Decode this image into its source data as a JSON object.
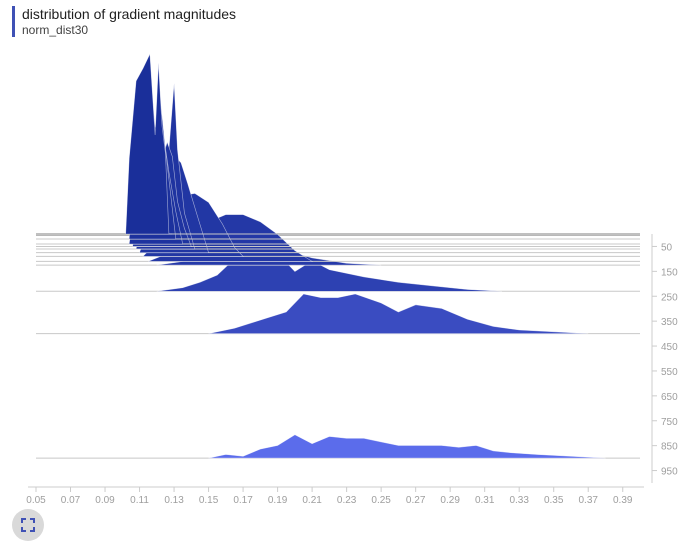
{
  "header": {
    "title": "distribution of gradient magnitudes",
    "subtitle": "norm_dist30"
  },
  "controls": {
    "expand_icon": "fullscreen-icon"
  },
  "colors": {
    "accent": "#3F51B5",
    "series_dark": "#1a2f9a",
    "series_light": "#6272f3",
    "axis": "#cccccc",
    "tick_text": "#9e9e9e"
  },
  "chart_data": {
    "type": "area",
    "title": "distribution of gradient magnitudes",
    "subtitle": "norm_dist30",
    "xlim": [
      0.05,
      0.4
    ],
    "x_ticks": [
      "0.05",
      "0.07",
      "0.09",
      "0.11",
      "0.13",
      "0.15",
      "0.17",
      "0.19",
      "0.21",
      "0.23",
      "0.25",
      "0.27",
      "0.29",
      "0.31",
      "0.33",
      "0.35",
      "0.37",
      "0.39"
    ],
    "ylim": [
      0,
      1000
    ],
    "y_ticks": [
      "50",
      "150",
      "250",
      "350",
      "450",
      "550",
      "650",
      "750",
      "850",
      "950"
    ],
    "ylabel": "",
    "xlabel": "",
    "series": [
      {
        "step": 0,
        "points": [
          [
            0.102,
            0
          ],
          [
            0.104,
            0.42
          ],
          [
            0.108,
            0.85
          ],
          [
            0.112,
            0.92
          ],
          [
            0.116,
            1.0
          ],
          [
            0.119,
            0.55
          ],
          [
            0.121,
            0.95
          ],
          [
            0.123,
            0.6
          ],
          [
            0.125,
            0.45
          ],
          [
            0.127,
            0
          ],
          [
            0.129,
            0
          ]
        ]
      },
      {
        "step": 20,
        "points": [
          [
            0.104,
            0
          ],
          [
            0.108,
            0.55
          ],
          [
            0.112,
            0.8
          ],
          [
            0.116,
            0.95
          ],
          [
            0.119,
            0.62
          ],
          [
            0.122,
            0.78
          ],
          [
            0.125,
            0.5
          ],
          [
            0.128,
            0.25
          ],
          [
            0.131,
            0
          ]
        ]
      },
      {
        "step": 40,
        "points": [
          [
            0.104,
            0
          ],
          [
            0.11,
            0.45
          ],
          [
            0.115,
            0.65
          ],
          [
            0.118,
            0.72
          ],
          [
            0.121,
            0.55
          ],
          [
            0.124,
            0.6
          ],
          [
            0.127,
            0.4
          ],
          [
            0.131,
            0.18
          ],
          [
            0.135,
            0
          ]
        ]
      },
      {
        "step": 50,
        "points": [
          [
            0.106,
            0
          ],
          [
            0.112,
            0.4
          ],
          [
            0.118,
            0.55
          ],
          [
            0.122,
            0.45
          ],
          [
            0.126,
            0.58
          ],
          [
            0.129,
            0.5
          ],
          [
            0.132,
            0.25
          ],
          [
            0.136,
            0.1
          ],
          [
            0.14,
            0
          ]
        ]
      },
      {
        "step": 60,
        "points": [
          [
            0.108,
            0
          ],
          [
            0.115,
            0.3
          ],
          [
            0.122,
            0.6
          ],
          [
            0.127,
            0.55
          ],
          [
            0.13,
            0.92
          ],
          [
            0.132,
            0.55
          ],
          [
            0.136,
            0.2
          ],
          [
            0.142,
            0
          ]
        ]
      },
      {
        "step": 75,
        "points": [
          [
            0.11,
            0
          ],
          [
            0.118,
            0.22
          ],
          [
            0.126,
            0.5
          ],
          [
            0.13,
            0.54
          ],
          [
            0.134,
            0.5
          ],
          [
            0.138,
            0.38
          ],
          [
            0.143,
            0.22
          ],
          [
            0.15,
            0
          ]
        ]
      },
      {
        "step": 90,
        "points": [
          [
            0.112,
            0
          ],
          [
            0.122,
            0.1
          ],
          [
            0.13,
            0.25
          ],
          [
            0.136,
            0.34
          ],
          [
            0.142,
            0.35
          ],
          [
            0.15,
            0.3
          ],
          [
            0.158,
            0.18
          ],
          [
            0.165,
            0.05
          ],
          [
            0.17,
            0
          ]
        ]
      },
      {
        "step": 110,
        "points": [
          [
            0.115,
            0
          ],
          [
            0.128,
            0.05
          ],
          [
            0.14,
            0.14
          ],
          [
            0.15,
            0.22
          ],
          [
            0.16,
            0.26
          ],
          [
            0.17,
            0.26
          ],
          [
            0.18,
            0.22
          ],
          [
            0.19,
            0.15
          ],
          [
            0.2,
            0.06
          ],
          [
            0.21,
            0
          ]
        ]
      },
      {
        "step": 125,
        "points": [
          [
            0.12,
            0
          ],
          [
            0.135,
            0.02
          ],
          [
            0.15,
            0.07
          ],
          [
            0.165,
            0.12
          ],
          [
            0.175,
            0.14
          ],
          [
            0.185,
            0.12
          ],
          [
            0.195,
            0.08
          ],
          [
            0.21,
            0.04
          ],
          [
            0.23,
            0.01
          ],
          [
            0.25,
            0
          ]
        ]
      },
      {
        "step": 230,
        "points": [
          [
            0.12,
            0
          ],
          [
            0.135,
            0.02
          ],
          [
            0.145,
            0.05
          ],
          [
            0.155,
            0.09
          ],
          [
            0.165,
            0.18
          ],
          [
            0.175,
            0.18
          ],
          [
            0.185,
            0.22
          ],
          [
            0.193,
            0.18
          ],
          [
            0.2,
            0.11
          ],
          [
            0.21,
            0.17
          ],
          [
            0.22,
            0.12
          ],
          [
            0.24,
            0.08
          ],
          [
            0.26,
            0.05
          ],
          [
            0.28,
            0.03
          ],
          [
            0.3,
            0.01
          ],
          [
            0.32,
            0
          ]
        ]
      },
      {
        "step": 400,
        "points": [
          [
            0.15,
            0
          ],
          [
            0.165,
            0.03
          ],
          [
            0.175,
            0.06
          ],
          [
            0.185,
            0.09
          ],
          [
            0.195,
            0.12
          ],
          [
            0.205,
            0.22
          ],
          [
            0.215,
            0.2
          ],
          [
            0.225,
            0.2
          ],
          [
            0.235,
            0.22
          ],
          [
            0.25,
            0.17
          ],
          [
            0.26,
            0.12
          ],
          [
            0.27,
            0.16
          ],
          [
            0.285,
            0.14
          ],
          [
            0.3,
            0.08
          ],
          [
            0.315,
            0.04
          ],
          [
            0.33,
            0.02
          ],
          [
            0.35,
            0.01
          ],
          [
            0.37,
            0
          ]
        ]
      },
      {
        "step": 900,
        "points": [
          [
            0.15,
            0
          ],
          [
            0.16,
            0.02
          ],
          [
            0.17,
            0.01
          ],
          [
            0.18,
            0.05
          ],
          [
            0.19,
            0.07
          ],
          [
            0.2,
            0.13
          ],
          [
            0.21,
            0.08
          ],
          [
            0.22,
            0.12
          ],
          [
            0.23,
            0.11
          ],
          [
            0.24,
            0.11
          ],
          [
            0.25,
            0.09
          ],
          [
            0.26,
            0.07
          ],
          [
            0.27,
            0.07
          ],
          [
            0.285,
            0.07
          ],
          [
            0.295,
            0.06
          ],
          [
            0.305,
            0.07
          ],
          [
            0.315,
            0.04
          ],
          [
            0.325,
            0.03
          ],
          [
            0.34,
            0.02
          ],
          [
            0.36,
            0.01
          ],
          [
            0.38,
            0
          ]
        ]
      }
    ]
  }
}
